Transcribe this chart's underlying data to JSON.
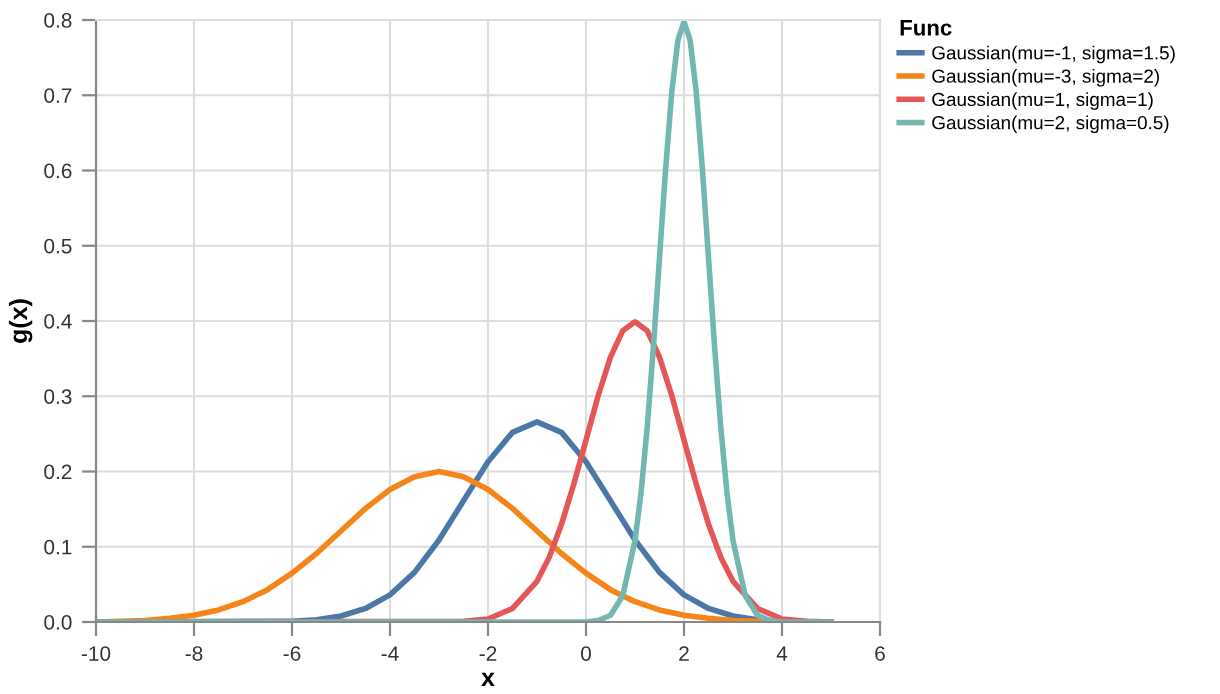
{
  "chart_data": {
    "type": "line",
    "xlabel": "x",
    "ylabel": "g(x)",
    "legend_title": "Func",
    "legend": "right",
    "grid": true,
    "line_style": "solid",
    "xlim": [
      -10,
      6
    ],
    "xticks": [
      -10,
      -8,
      -6,
      -4,
      -2,
      0,
      2,
      4,
      6
    ],
    "ylim": [
      0,
      0.8
    ],
    "yticks": [
      {
        "value": 0,
        "label": "0.0"
      },
      {
        "value": 0.1,
        "label": "0.1"
      },
      {
        "value": 0.2,
        "label": "0.2"
      },
      {
        "value": 0.3,
        "label": "0.3"
      },
      {
        "value": 0.4,
        "label": "0.4"
      },
      {
        "value": 0.5,
        "label": "0.5"
      },
      {
        "value": 0.6,
        "label": "0.6"
      },
      {
        "value": 0.7,
        "label": "0.7"
      },
      {
        "value": 0.8,
        "label": "0.8"
      }
    ],
    "series": [
      {
        "name": "Gaussian(mu=-1, sigma=1.5)",
        "color": "#4c78a8",
        "x": [
          -10,
          -6,
          -5.5,
          -5,
          -4.5,
          -4,
          -3.5,
          -3,
          -2.5,
          -2,
          -1.5,
          -1,
          -0.5,
          0,
          0.5,
          1,
          1.5,
          2,
          2.5,
          3,
          3.5,
          4,
          5
        ],
        "values": [
          0,
          0.001,
          0.003,
          0.008,
          0.018,
          0.036,
          0.066,
          0.109,
          0.161,
          0.213,
          0.252,
          0.266,
          0.252,
          0.213,
          0.161,
          0.109,
          0.066,
          0.036,
          0.018,
          0.008,
          0.003,
          0.001,
          0
        ]
      },
      {
        "name": "Gaussian(mu=-3, sigma=2)",
        "color": "#f58518",
        "x": [
          -10,
          -9,
          -8.5,
          -8,
          -7.5,
          -7,
          -6.5,
          -6,
          -5.5,
          -5,
          -4.5,
          -4,
          -3.5,
          -3,
          -2.5,
          -2,
          -1.5,
          -1,
          -0.5,
          0,
          0.5,
          1,
          1.5,
          2,
          2.5,
          3,
          3.5,
          5
        ],
        "values": [
          0,
          0.002,
          0.005,
          0.009,
          0.016,
          0.027,
          0.043,
          0.065,
          0.091,
          0.121,
          0.151,
          0.176,
          0.193,
          0.2,
          0.193,
          0.176,
          0.151,
          0.121,
          0.091,
          0.065,
          0.043,
          0.027,
          0.016,
          0.009,
          0.005,
          0.002,
          0.001,
          0
        ]
      },
      {
        "name": "Gaussian(mu=1, sigma=1)",
        "color": "#e45756",
        "x": [
          -10,
          -2.5,
          -2,
          -1.5,
          -1,
          -0.75,
          -0.5,
          -0.25,
          0,
          0.25,
          0.5,
          0.75,
          1,
          1.25,
          1.5,
          1.75,
          2,
          2.25,
          2.5,
          2.75,
          3,
          3.5,
          4,
          4.5,
          5
        ],
        "values": [
          0,
          0.001,
          0.004,
          0.018,
          0.054,
          0.086,
          0.13,
          0.183,
          0.242,
          0.301,
          0.352,
          0.387,
          0.399,
          0.387,
          0.352,
          0.301,
          0.242,
          0.183,
          0.13,
          0.086,
          0.054,
          0.018,
          0.004,
          0.001,
          0
        ]
      },
      {
        "name": "Gaussian(mu=2, sigma=0.5)",
        "color": "#72b7b2",
        "x": [
          -10,
          0,
          0.25,
          0.5,
          0.75,
          1,
          1.125,
          1.25,
          1.375,
          1.5,
          1.625,
          1.75,
          1.875,
          2,
          2.125,
          2.25,
          2.375,
          2.5,
          2.625,
          2.75,
          2.875,
          3,
          3.25,
          3.5,
          3.75,
          4,
          5
        ],
        "values": [
          0,
          0,
          0.002,
          0.009,
          0.035,
          0.108,
          0.173,
          0.259,
          0.365,
          0.484,
          0.602,
          0.704,
          0.773,
          0.798,
          0.773,
          0.704,
          0.602,
          0.484,
          0.365,
          0.259,
          0.173,
          0.108,
          0.035,
          0.009,
          0.002,
          0,
          0
        ]
      }
    ]
  }
}
